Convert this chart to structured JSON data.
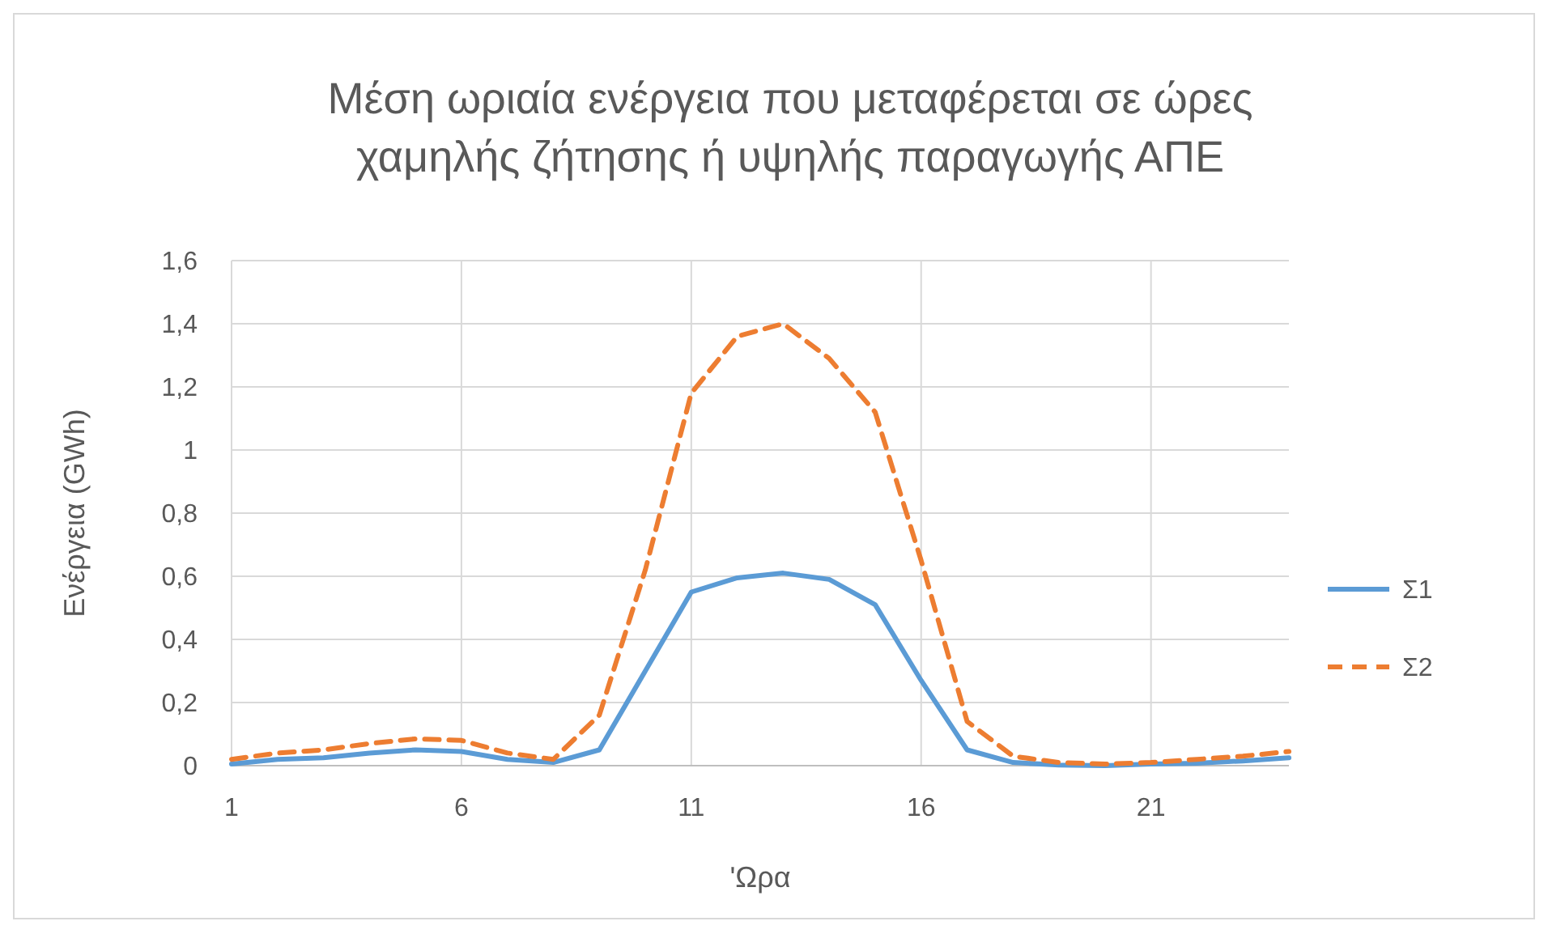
{
  "chart_data": {
    "type": "line",
    "title": "Μέση ωριαία ενέργεια που μεταφέρεται σε ώρες χαμηλής ζήτησης ή υψηλής παραγωγής ΑΠΕ",
    "xlabel": "'Ωρα",
    "ylabel": "Ενέργεια (GWh)",
    "x": [
      1,
      2,
      3,
      4,
      5,
      6,
      7,
      8,
      9,
      10,
      11,
      12,
      13,
      14,
      15,
      16,
      17,
      18,
      19,
      20,
      21,
      22,
      23,
      24
    ],
    "series": [
      {
        "name": "Σ1",
        "color": "#5b9bd5",
        "line_style": "solid",
        "values": [
          0.005,
          0.02,
          0.025,
          0.04,
          0.05,
          0.045,
          0.02,
          0.01,
          0.05,
          0.3,
          0.55,
          0.595,
          0.61,
          0.59,
          0.51,
          0.27,
          0.05,
          0.01,
          0.002,
          0,
          0.005,
          0.008,
          0.015,
          0.025
        ]
      },
      {
        "name": "Σ2",
        "color": "#ed7d31",
        "line_style": "dashed",
        "values": [
          0.02,
          0.04,
          0.05,
          0.07,
          0.085,
          0.08,
          0.04,
          0.02,
          0.16,
          0.62,
          1.18,
          1.36,
          1.4,
          1.29,
          1.12,
          0.65,
          0.14,
          0.03,
          0.01,
          0.005,
          0.01,
          0.02,
          0.03,
          0.045
        ]
      }
    ],
    "xlim": [
      1,
      24
    ],
    "xticks": [
      1,
      6,
      11,
      16,
      21
    ],
    "ylim": [
      0,
      1.6
    ],
    "yticks": [
      {
        "value": 0,
        "label": "0"
      },
      {
        "value": 0.2,
        "label": "0,2"
      },
      {
        "value": 0.4,
        "label": "0,4"
      },
      {
        "value": 0.6,
        "label": "0,6"
      },
      {
        "value": 0.8,
        "label": "0,8"
      },
      {
        "value": 1,
        "label": "1"
      },
      {
        "value": 1.2,
        "label": "1,2"
      },
      {
        "value": 1.4,
        "label": "1,4"
      },
      {
        "value": 1.6,
        "label": "1,6"
      }
    ],
    "grid": true,
    "legend": "right"
  }
}
